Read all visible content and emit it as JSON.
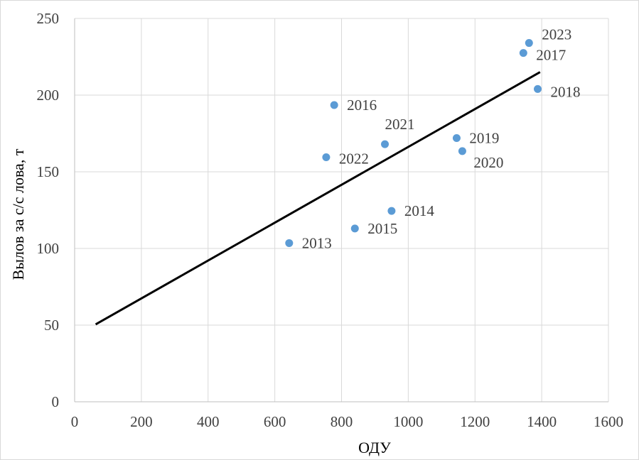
{
  "chart_data": {
    "type": "scatter",
    "title": "",
    "xlabel": "ОДУ",
    "ylabel": "Вылов за с/с лова, т",
    "xlim": [
      0,
      1600
    ],
    "ylim": [
      0,
      250
    ],
    "x_ticks": [
      0,
      200,
      400,
      600,
      800,
      1000,
      1200,
      1400,
      1600
    ],
    "y_ticks": [
      0,
      50,
      100,
      150,
      200,
      250
    ],
    "grid": true,
    "legend": "none",
    "series": [
      {
        "points": [
          {
            "label": "2013",
            "x": 643,
            "y": 103.5
          },
          {
            "label": "2014",
            "x": 950,
            "y": 124.5
          },
          {
            "label": "2015",
            "x": 840,
            "y": 113
          },
          {
            "label": "2016",
            "x": 778,
            "y": 193.5
          },
          {
            "label": "2017",
            "x": 1345,
            "y": 227.5
          },
          {
            "label": "2018",
            "x": 1388,
            "y": 204
          },
          {
            "label": "2019",
            "x": 1145,
            "y": 172
          },
          {
            "label": "2020",
            "x": 1162,
            "y": 163.5
          },
          {
            "label": "2021",
            "x": 930,
            "y": 168
          },
          {
            "label": "2022",
            "x": 754,
            "y": 159.5
          },
          {
            "label": "2023",
            "x": 1362,
            "y": 234
          }
        ],
        "color": "#5b9bd5"
      }
    ],
    "trendline": {
      "x": [
        63,
        1395
      ],
      "y": [
        50.5,
        215
      ],
      "color": "#000000"
    }
  }
}
